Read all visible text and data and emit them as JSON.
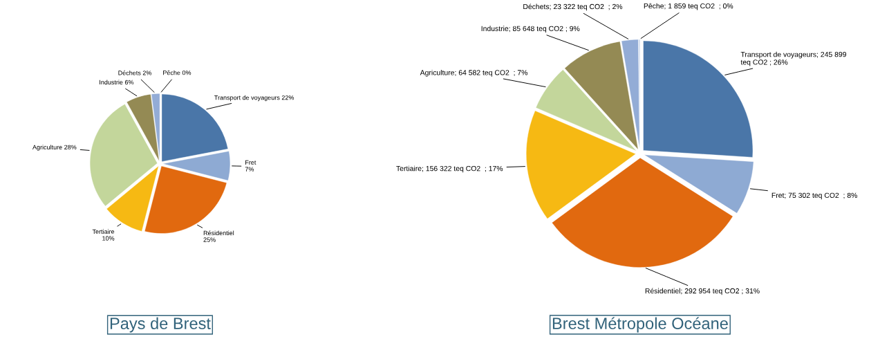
{
  "chart_data": [
    {
      "type": "pie",
      "title": "Pays de Brest",
      "categories": [
        "Transport de voyageurs",
        "Fret",
        "Résidentiel",
        "Tertiaire",
        "Agriculture",
        "Industrie",
        "Déchets",
        "Pêche"
      ],
      "values": [
        22,
        7,
        25,
        10,
        28,
        6,
        2,
        0
      ],
      "value_labels": [
        " 22%",
        "\n7%",
        "\n25%",
        "\n10%",
        " 28%",
        " 6%",
        " 2%",
        " 0%"
      ],
      "colors": [
        "#4a76a8",
        "#8eaad3",
        "#e1690f",
        "#f6b913",
        "#c3d69b",
        "#948a54",
        "#93acd6",
        "#c9d6ea"
      ]
    },
    {
      "type": "pie",
      "title": "Brest Métropole Océane",
      "categories": [
        "Transport de voyageurs",
        "Fret",
        "Résidentiel",
        "Tertiaire",
        "Agriculture",
        "Industrie",
        "Déchets",
        "Pêche"
      ],
      "values": [
        245899,
        75302,
        292954,
        156322,
        64582,
        85648,
        23322,
        1859
      ],
      "value_labels": [
        "; 245 899\nteq CO2 ; 26%",
        "; 75 302 teq CO2  ; 8%",
        "; 292 954 teq CO2 ; 31%",
        "; 156 322 teq CO2  ; 17%",
        "; 64 582 teq CO2  ; 7%",
        "; 85 648 teq CO2 ; 9%",
        "; 23 322 teq CO2  ; 2%",
        "; 1 859 teq CO2  ; 0%"
      ],
      "colors": [
        "#4a76a8",
        "#8eaad3",
        "#e1690f",
        "#f6b913",
        "#c3d69b",
        "#948a54",
        "#93acd6",
        "#c9d6ea"
      ]
    }
  ]
}
